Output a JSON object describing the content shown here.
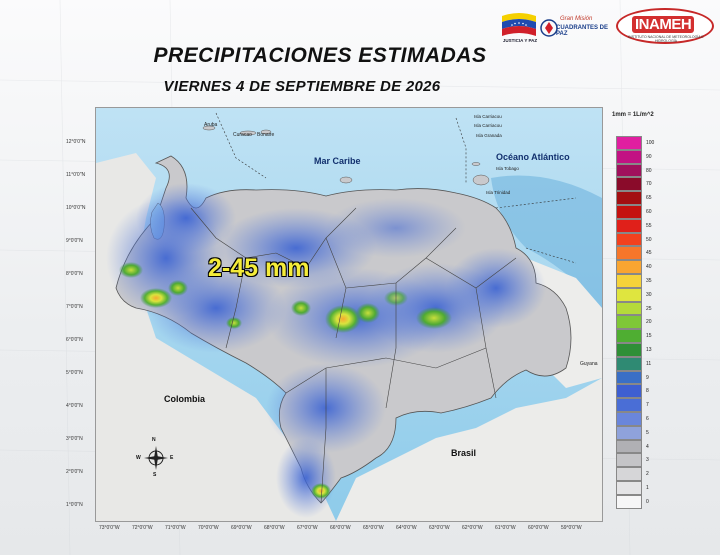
{
  "title": "PRECIPITACIONES ESTIMADAS",
  "subtitle": "VIERNES 4 DE SEPTIEMBRE DE 2026",
  "logos": {
    "flag_label": "JUSTICIA Y PAZ",
    "gmv_line1": "Gran Misión",
    "gmv_line2": "CUADRANTES DE PAZ",
    "inameh": "INAMEH",
    "inameh_sub": "INSTITUTO NACIONAL DE METEOROLOGÍA E HIDROLOGÍA"
  },
  "map": {
    "highlight_label": "2-45 mm",
    "place_labels": {
      "mar_caribe": "Mar Caribe",
      "oceano": "Océano Atlántico",
      "colombia": "Colombia",
      "brasil": "Brasil",
      "guyana": "Guyana",
      "aruba": "Aruba",
      "curacao": "Curacao",
      "bonaire": "Bonaire",
      "isla_carriacou": "Isla Carriacou",
      "isla_carriacou2": "Isla Carriacou",
      "isla_granada": "Isla Granada",
      "isla_tobago": "Isla Tobago",
      "isla_trinidad": "Isla Trinidad"
    },
    "lat_labels": [
      "12°0'0\"N",
      "11°0'0\"N",
      "10°0'0\"N",
      "9°0'0\"N",
      "8°0'0\"N",
      "7°0'0\"N",
      "6°0'0\"N",
      "5°0'0\"N",
      "4°0'0\"N",
      "3°0'0\"N",
      "2°0'0\"N",
      "1°0'0\"N"
    ],
    "lon_labels": [
      "73°0'0\"W",
      "72°0'0\"W",
      "71°0'0\"W",
      "70°0'0\"W",
      "69°0'0\"W",
      "68°0'0\"W",
      "67°0'0\"W",
      "66°0'0\"W",
      "65°0'0\"W",
      "64°0'0\"W",
      "63°0'0\"W",
      "62°0'0\"W",
      "61°0'0\"W",
      "60°0'0\"W",
      "59°0'0\"W"
    ],
    "compass": {
      "n": "N",
      "s": "S",
      "e": "E",
      "w": "W"
    }
  },
  "legend": {
    "title": "1mm = 1L/m^2",
    "entries": [
      {
        "value": "100",
        "color": "#e01fa0"
      },
      {
        "value": "90",
        "color": "#c21283"
      },
      {
        "value": "80",
        "color": "#a0105c"
      },
      {
        "value": "70",
        "color": "#8a0b2a"
      },
      {
        "value": "65",
        "color": "#a30f12"
      },
      {
        "value": "60",
        "color": "#c4120f"
      },
      {
        "value": "55",
        "color": "#e0201a"
      },
      {
        "value": "50",
        "color": "#f2411e"
      },
      {
        "value": "45",
        "color": "#f7762a"
      },
      {
        "value": "40",
        "color": "#f9a531"
      },
      {
        "value": "35",
        "color": "#f6d33a"
      },
      {
        "value": "30",
        "color": "#dfe53f"
      },
      {
        "value": "25",
        "color": "#b5da3a"
      },
      {
        "value": "20",
        "color": "#7fc737"
      },
      {
        "value": "15",
        "color": "#4fae32"
      },
      {
        "value": "13",
        "color": "#2f8f37"
      },
      {
        "value": "11",
        "color": "#2f8a73"
      },
      {
        "value": "9",
        "color": "#3a6fc6"
      },
      {
        "value": "8",
        "color": "#3e5fd1"
      },
      {
        "value": "7",
        "color": "#4a6ed6"
      },
      {
        "value": "6",
        "color": "#6a86db"
      },
      {
        "value": "5",
        "color": "#8fa2db"
      },
      {
        "value": "4",
        "color": "#b0b0b4"
      },
      {
        "value": "3",
        "color": "#c4c4c7"
      },
      {
        "value": "2",
        "color": "#d6d6d8"
      },
      {
        "value": "1",
        "color": "#e4e4e6"
      },
      {
        "value": "0",
        "color": "#f6f6f7"
      }
    ]
  }
}
